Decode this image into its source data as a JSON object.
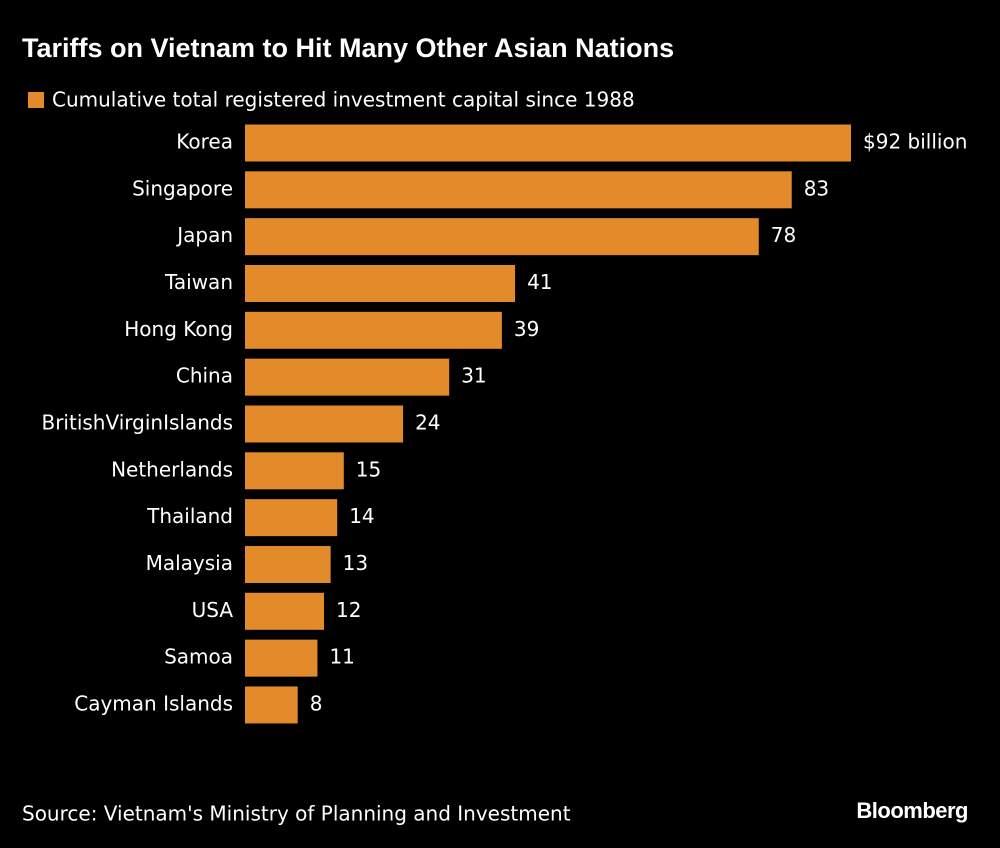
{
  "chart_data": {
    "type": "hbar",
    "title": "Tariffs on Vietnam to Hit Many Other Asian Nations",
    "categories": [
      "Korea",
      "Singapore",
      "Japan",
      "Taiwan",
      "Hong Kong",
      "China",
      "BritishVirginIslands",
      "Netherlands",
      "Thailand",
      "Malaysia",
      "USA",
      "Samoa",
      "Cayman Islands"
    ],
    "series": [
      {
        "name": "Cumulative total registered investment capital since 1988",
        "color": "#e38b2a",
        "values": [
          92,
          83,
          78,
          41,
          39,
          31,
          24,
          15,
          14,
          13,
          12,
          11,
          8
        ],
        "value_labels": [
          "$92 billion",
          "83",
          "78",
          "41",
          "39",
          "31",
          "24",
          "15",
          "14",
          "13",
          "12",
          "11",
          "8"
        ]
      }
    ],
    "source": "Source: Vietnam's Ministry of Planning and Investment",
    "brand": "Bloomberg"
  }
}
